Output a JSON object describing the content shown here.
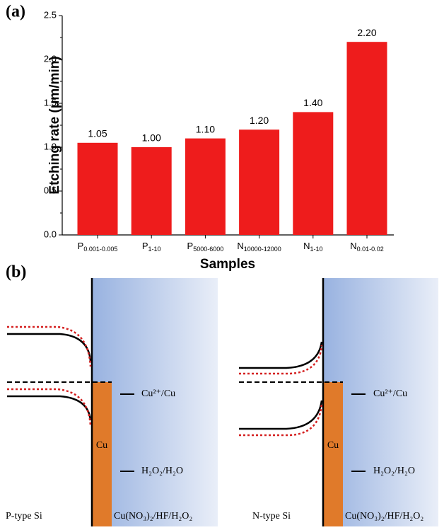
{
  "panel_labels": [
    "(a)",
    "(b)"
  ],
  "chart_data": {
    "type": "bar",
    "categories": [
      "P0.001-0.005",
      "P1-10",
      "P5000-6000",
      "N10000-12000",
      "N1-10",
      "N0.01-0.02"
    ],
    "values": [
      1.05,
      1.0,
      1.1,
      1.2,
      1.4,
      2.2
    ],
    "value_labels": [
      "1.05",
      "1.00",
      "1.10",
      "1.20",
      "1.40",
      "2.20"
    ],
    "color": "#ee1c1c",
    "y_label": "Etching rate (μm/min)",
    "x_label": "Samples",
    "ylim": [
      0,
      2.5
    ],
    "yticks": [
      {
        "value": 0,
        "label": "0.0"
      },
      {
        "value": 0.5,
        "label": "0.5"
      },
      {
        "value": 1,
        "label": "1.0"
      },
      {
        "value": 1.5,
        "label": "1.5"
      },
      {
        "value": 2,
        "label": "2.0"
      },
      {
        "value": 2.5,
        "label": "2.5"
      }
    ]
  },
  "diagram": {
    "left": {
      "metal": "Cu",
      "level_1": "Cu²⁺/Cu",
      "level_2": "H₂O₂/H₂O",
      "semiconductor": "P-type Si",
      "solution": "Cu(NO₃)₂/HF/H₂O₂"
    },
    "right": {
      "metal": "Cu",
      "level_1": "Cu²⁺/Cu",
      "level_2": "H₂O₂/H₂O",
      "semiconductor": "N-type Si",
      "solution": "Cu(NO₃)₂/HF/H₂O₂"
    }
  }
}
